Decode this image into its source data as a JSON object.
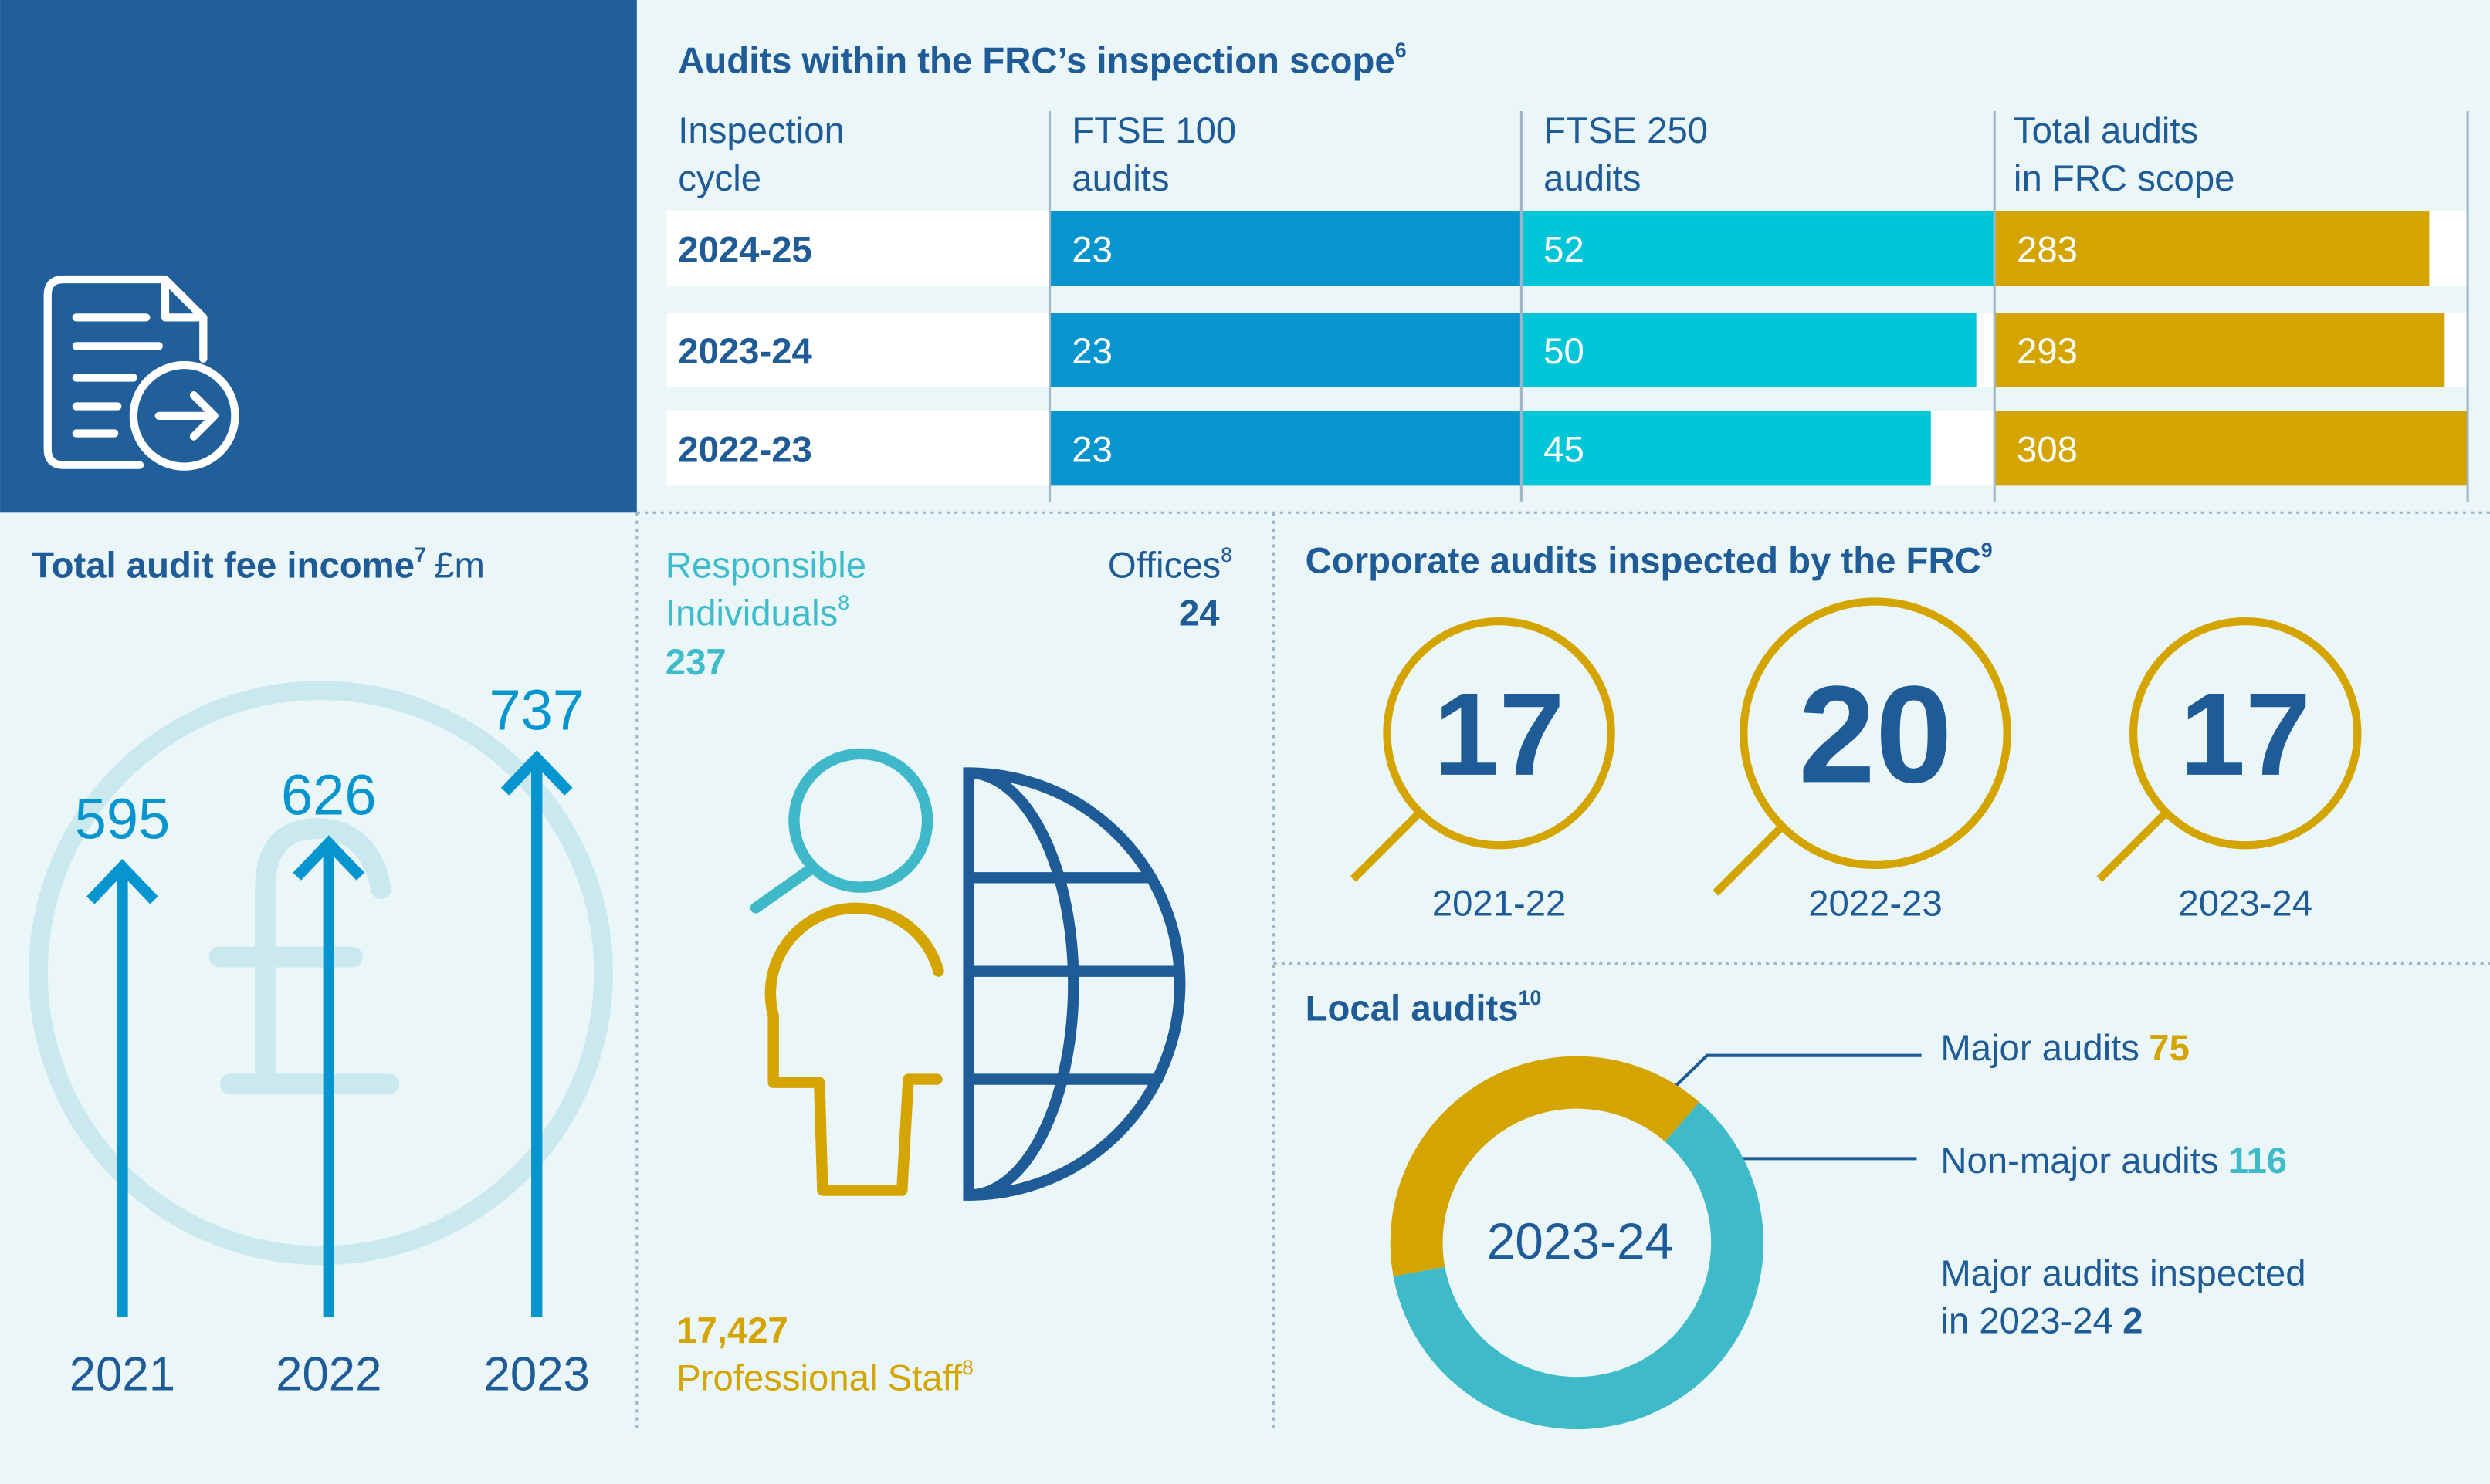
{
  "scope_table": {
    "title": "Audits within the FRC’s inspection scope",
    "title_note": "6",
    "headers": [
      [
        "Inspection",
        "cycle"
      ],
      [
        "FTSE 100",
        "audits"
      ],
      [
        "FTSE 250",
        "audits"
      ],
      [
        "Total audits",
        "in FRC scope"
      ]
    ],
    "rows": [
      {
        "cycle": "2024-25",
        "values": [
          23,
          52,
          283
        ]
      },
      {
        "cycle": "2023-24",
        "values": [
          23,
          50,
          293
        ]
      },
      {
        "cycle": "2022-23",
        "values": [
          23,
          45,
          308
        ]
      }
    ],
    "colors": [
      "#0795cf",
      "#00c6d7",
      "#d4a500"
    ]
  },
  "fee_income": {
    "title": "Total audit fee income",
    "title_note": "7",
    "unit": "£m",
    "years": [
      "2021",
      "2022",
      "2023"
    ],
    "values": [
      595,
      626,
      737
    ],
    "color": "#0795cf"
  },
  "people": {
    "individuals_label": [
      "Responsible",
      "Individuals"
    ],
    "individuals_note": "8",
    "individuals": 237,
    "offices_label": "Offices",
    "offices_note": "8",
    "offices": 24,
    "staff": "17,427",
    "staff_label": "Professional Staff",
    "staff_note": "8"
  },
  "corporate": {
    "title": "Corporate audits inspected by the FRC",
    "title_note": "9",
    "cycles": [
      "2021-22",
      "2022-23",
      "2023-24"
    ],
    "values": [
      17,
      20,
      17
    ]
  },
  "local": {
    "title": "Local audits",
    "title_note": "10",
    "year": "2023-24",
    "major_label": "Major audits",
    "major": 75,
    "non_major_label": "Non-major audits",
    "non_major": 116,
    "inspected_label": [
      "Major audits inspected",
      "in 2023-24"
    ],
    "inspected": 2
  }
}
